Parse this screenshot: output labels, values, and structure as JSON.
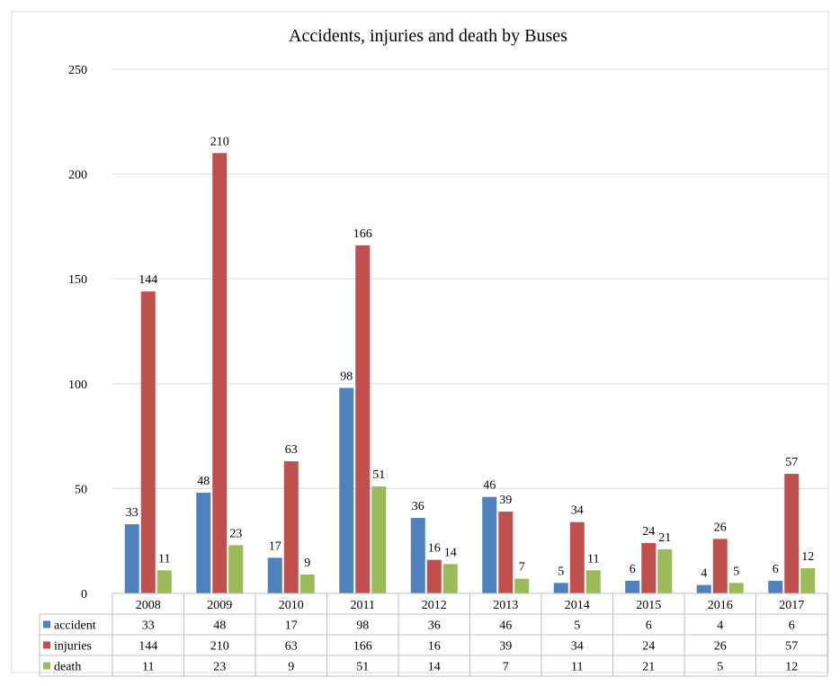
{
  "chart_data": {
    "type": "bar",
    "title": "Accidents, injuries and death by Buses",
    "categories": [
      "2008",
      "2009",
      "2010",
      "2011",
      "2012",
      "2013",
      "2014",
      "2015",
      "2016",
      "2017"
    ],
    "series": [
      {
        "name": "accident",
        "color": "#4f81bd",
        "values": [
          33,
          48,
          17,
          98,
          36,
          46,
          5,
          6,
          4,
          6
        ]
      },
      {
        "name": "injuries",
        "color": "#c0504d",
        "values": [
          144,
          210,
          63,
          166,
          16,
          39,
          34,
          24,
          26,
          57
        ]
      },
      {
        "name": "death",
        "color": "#9bbb59",
        "values": [
          11,
          23,
          9,
          51,
          14,
          7,
          11,
          21,
          5,
          12
        ]
      }
    ],
    "yticks": [
      "0",
      "50",
      "100",
      "150",
      "200",
      "250"
    ],
    "ylim": [
      0,
      250
    ],
    "grid": true,
    "data_table": true,
    "legend_placement": "data-table-left"
  }
}
